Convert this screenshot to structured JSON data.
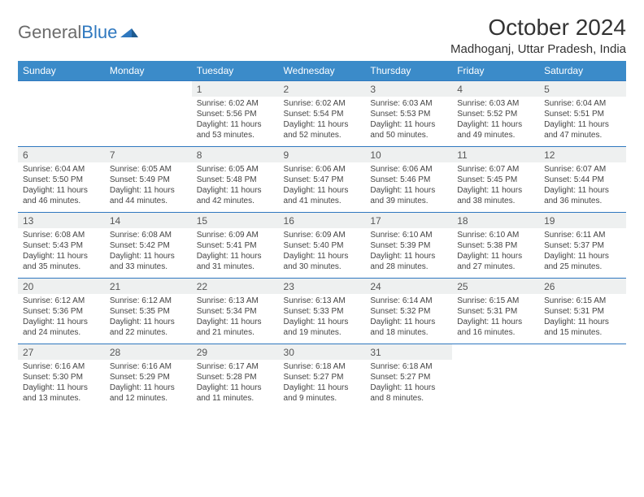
{
  "brand": {
    "part1": "General",
    "part2": "Blue"
  },
  "title": "October 2024",
  "location": "Madhoganj, Uttar Pradesh, India",
  "colors": {
    "header_bg": "#3b8bc9",
    "header_text": "#ffffff",
    "date_row_bg": "#eef0f0",
    "border": "#2f78bf",
    "body_text": "#444444",
    "brand_gray": "#6b6b6b",
    "brand_blue": "#2f78bf"
  },
  "day_headers": [
    "Sunday",
    "Monday",
    "Tuesday",
    "Wednesday",
    "Thursday",
    "Friday",
    "Saturday"
  ],
  "weeks": [
    [
      null,
      null,
      {
        "d": "1",
        "sr": "6:02 AM",
        "ss": "5:56 PM",
        "dl": "11 hours and 53 minutes."
      },
      {
        "d": "2",
        "sr": "6:02 AM",
        "ss": "5:54 PM",
        "dl": "11 hours and 52 minutes."
      },
      {
        "d": "3",
        "sr": "6:03 AM",
        "ss": "5:53 PM",
        "dl": "11 hours and 50 minutes."
      },
      {
        "d": "4",
        "sr": "6:03 AM",
        "ss": "5:52 PM",
        "dl": "11 hours and 49 minutes."
      },
      {
        "d": "5",
        "sr": "6:04 AM",
        "ss": "5:51 PM",
        "dl": "11 hours and 47 minutes."
      }
    ],
    [
      {
        "d": "6",
        "sr": "6:04 AM",
        "ss": "5:50 PM",
        "dl": "11 hours and 46 minutes."
      },
      {
        "d": "7",
        "sr": "6:05 AM",
        "ss": "5:49 PM",
        "dl": "11 hours and 44 minutes."
      },
      {
        "d": "8",
        "sr": "6:05 AM",
        "ss": "5:48 PM",
        "dl": "11 hours and 42 minutes."
      },
      {
        "d": "9",
        "sr": "6:06 AM",
        "ss": "5:47 PM",
        "dl": "11 hours and 41 minutes."
      },
      {
        "d": "10",
        "sr": "6:06 AM",
        "ss": "5:46 PM",
        "dl": "11 hours and 39 minutes."
      },
      {
        "d": "11",
        "sr": "6:07 AM",
        "ss": "5:45 PM",
        "dl": "11 hours and 38 minutes."
      },
      {
        "d": "12",
        "sr": "6:07 AM",
        "ss": "5:44 PM",
        "dl": "11 hours and 36 minutes."
      }
    ],
    [
      {
        "d": "13",
        "sr": "6:08 AM",
        "ss": "5:43 PM",
        "dl": "11 hours and 35 minutes."
      },
      {
        "d": "14",
        "sr": "6:08 AM",
        "ss": "5:42 PM",
        "dl": "11 hours and 33 minutes."
      },
      {
        "d": "15",
        "sr": "6:09 AM",
        "ss": "5:41 PM",
        "dl": "11 hours and 31 minutes."
      },
      {
        "d": "16",
        "sr": "6:09 AM",
        "ss": "5:40 PM",
        "dl": "11 hours and 30 minutes."
      },
      {
        "d": "17",
        "sr": "6:10 AM",
        "ss": "5:39 PM",
        "dl": "11 hours and 28 minutes."
      },
      {
        "d": "18",
        "sr": "6:10 AM",
        "ss": "5:38 PM",
        "dl": "11 hours and 27 minutes."
      },
      {
        "d": "19",
        "sr": "6:11 AM",
        "ss": "5:37 PM",
        "dl": "11 hours and 25 minutes."
      }
    ],
    [
      {
        "d": "20",
        "sr": "6:12 AM",
        "ss": "5:36 PM",
        "dl": "11 hours and 24 minutes."
      },
      {
        "d": "21",
        "sr": "6:12 AM",
        "ss": "5:35 PM",
        "dl": "11 hours and 22 minutes."
      },
      {
        "d": "22",
        "sr": "6:13 AM",
        "ss": "5:34 PM",
        "dl": "11 hours and 21 minutes."
      },
      {
        "d": "23",
        "sr": "6:13 AM",
        "ss": "5:33 PM",
        "dl": "11 hours and 19 minutes."
      },
      {
        "d": "24",
        "sr": "6:14 AM",
        "ss": "5:32 PM",
        "dl": "11 hours and 18 minutes."
      },
      {
        "d": "25",
        "sr": "6:15 AM",
        "ss": "5:31 PM",
        "dl": "11 hours and 16 minutes."
      },
      {
        "d": "26",
        "sr": "6:15 AM",
        "ss": "5:31 PM",
        "dl": "11 hours and 15 minutes."
      }
    ],
    [
      {
        "d": "27",
        "sr": "6:16 AM",
        "ss": "5:30 PM",
        "dl": "11 hours and 13 minutes."
      },
      {
        "d": "28",
        "sr": "6:16 AM",
        "ss": "5:29 PM",
        "dl": "11 hours and 12 minutes."
      },
      {
        "d": "29",
        "sr": "6:17 AM",
        "ss": "5:28 PM",
        "dl": "11 hours and 11 minutes."
      },
      {
        "d": "30",
        "sr": "6:18 AM",
        "ss": "5:27 PM",
        "dl": "11 hours and 9 minutes."
      },
      {
        "d": "31",
        "sr": "6:18 AM",
        "ss": "5:27 PM",
        "dl": "11 hours and 8 minutes."
      },
      null,
      null
    ]
  ],
  "labels": {
    "sunrise": "Sunrise: ",
    "sunset": "Sunset: ",
    "daylight": "Daylight: "
  }
}
